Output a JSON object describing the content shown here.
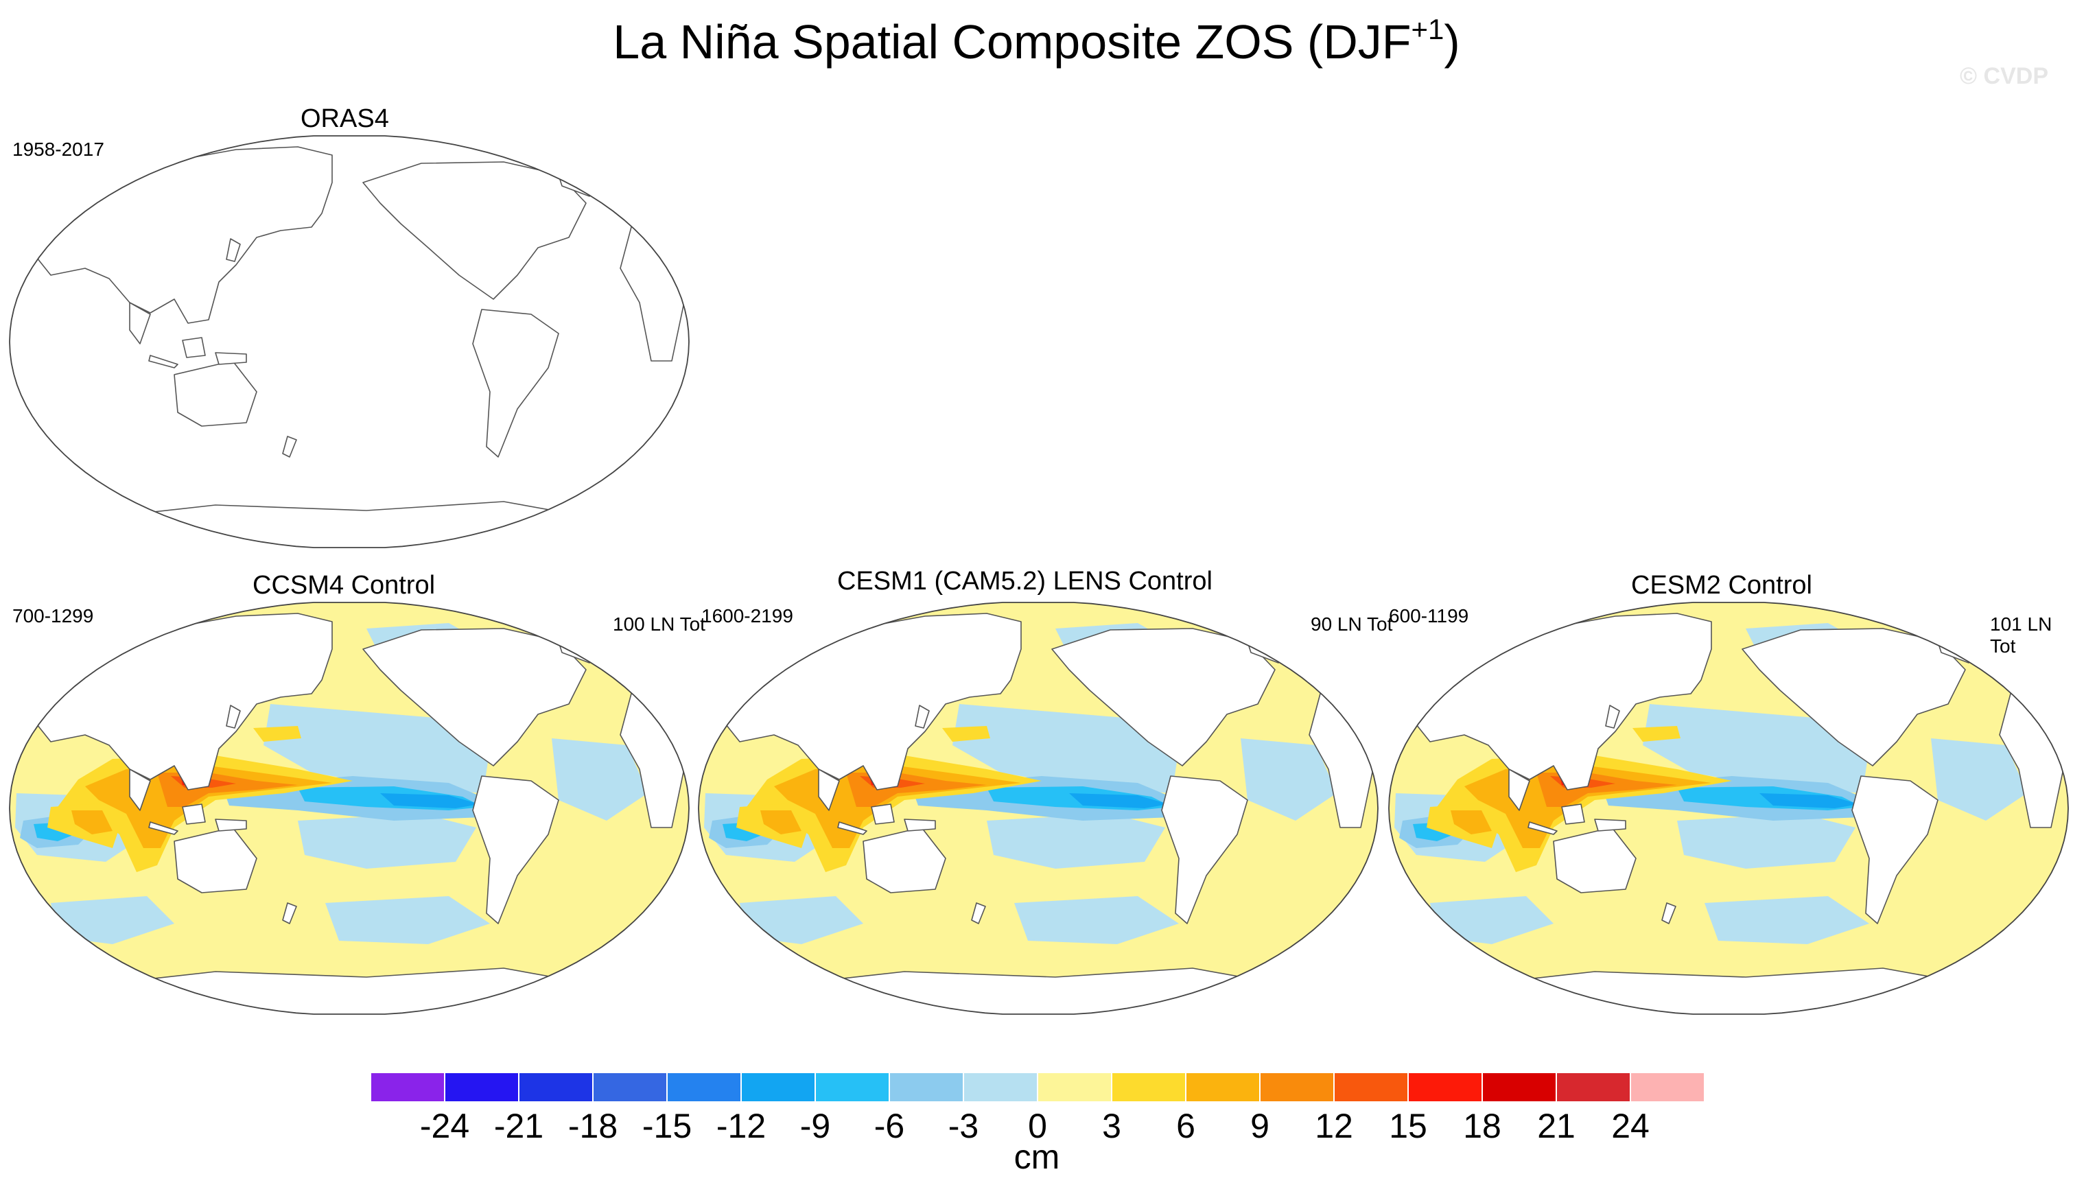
{
  "figure": {
    "title": "La Niña Spatial Composite ZOS (DJF",
    "title_superscript": "+1",
    "title_close": ")",
    "watermark": "© CVDP",
    "units": "cm"
  },
  "panels": [
    {
      "id": "oras4",
      "name": "ORAS4",
      "years": "1958-2017",
      "count": "",
      "has_data": false
    },
    {
      "id": "ccsm4",
      "name": "CCSM4 Control",
      "years": "700-1299",
      "count": "100 LN Tot",
      "has_data": true
    },
    {
      "id": "cesm1",
      "name": "CESM1 (CAM5.2) LENS Control",
      "years": "1600-2199",
      "count": "90 LN Tot",
      "has_data": true
    },
    {
      "id": "cesm2",
      "name": "CESM2 Control",
      "years": "600-1199",
      "count": "101 LN Tot",
      "has_data": true
    }
  ],
  "colorbar": {
    "colors": [
      "#8a23ea",
      "#2515f2",
      "#1d34e6",
      "#3567e2",
      "#2482ef",
      "#12a5f2",
      "#26c0f6",
      "#8ccbee",
      "#b6e0f1",
      "#fdf598",
      "#fddb2d",
      "#fbb30e",
      "#f98b0c",
      "#f8580d",
      "#fd1a08",
      "#d80000",
      "#d7282e",
      "#fdb2b2"
    ],
    "tick_labels": [
      "-24",
      "-21",
      "-18",
      "-15",
      "-12",
      "-9",
      "-6",
      "-3",
      "0",
      "3",
      "6",
      "9",
      "12",
      "15",
      "18",
      "21",
      "24"
    ]
  }
}
